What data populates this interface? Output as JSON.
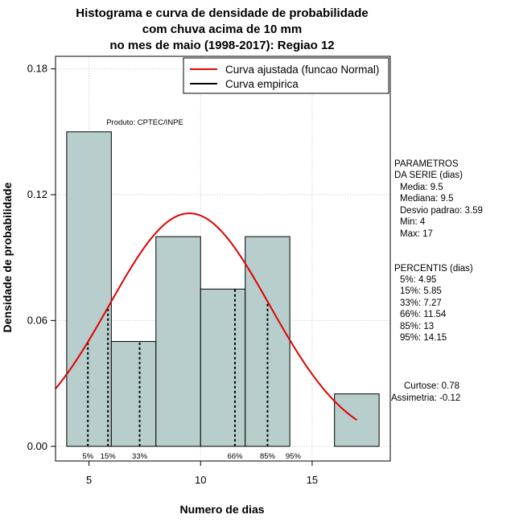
{
  "chart_data": {
    "type": "histogram",
    "title_lines": [
      "Histograma e curva de densidade de probabilidade",
      "com chuva acima de 10 mm",
      "no mes de maio (1998-2017): Regiao 12"
    ],
    "xlabel": "Numero de dias",
    "ylabel": "Densidade de probabilidade",
    "xlim": [
      3.5,
      18.5
    ],
    "ylim": [
      -0.007,
      0.186
    ],
    "x_ticks": [
      5,
      10,
      15
    ],
    "y_ticks": [
      0.0,
      0.06,
      0.12,
      0.18
    ],
    "y_tick_labels": [
      "0.00",
      "0.06",
      "0.12",
      "0.18"
    ],
    "grid": true,
    "bins": [
      {
        "x0": 4,
        "x1": 6,
        "density": 0.15
      },
      {
        "x0": 6,
        "x1": 8,
        "density": 0.05
      },
      {
        "x0": 8,
        "x1": 10,
        "density": 0.1
      },
      {
        "x0": 10,
        "x1": 12,
        "density": 0.075
      },
      {
        "x0": 12,
        "x1": 14,
        "density": 0.1
      },
      {
        "x0": 14,
        "x1": 16,
        "density": 0.0
      },
      {
        "x0": 16,
        "x1": 18,
        "density": 0.025
      }
    ],
    "normal_curve": {
      "mean": 9.5,
      "sd": 3.59,
      "x_range": [
        3.5,
        17
      ],
      "color": "#e00000"
    },
    "bar_fill": "#b7cecc",
    "percentiles": [
      {
        "label": "5%",
        "value": 4.95
      },
      {
        "label": "15%",
        "value": 5.85
      },
      {
        "label": "33%",
        "value": 7.27
      },
      {
        "label": "66%",
        "value": 11.54
      },
      {
        "label": "85%",
        "value": 13
      },
      {
        "label": "95%",
        "value": 14.15
      }
    ],
    "legend": [
      {
        "label": "Curva ajustada (funcao Normal)",
        "color": "#e00000"
      },
      {
        "label": "Curva empirica",
        "color": "#000000"
      }
    ],
    "legend_position": "top-right",
    "annotation": "Produto: CPTEC/INPE",
    "side_panel": {
      "parametros_title": [
        "PARAMETROS",
        "DA SERIE (dias)"
      ],
      "parametros": [
        "Media: 9.5",
        "Mediana: 9.5",
        "Desvio padrao: 3.59",
        "Min: 4",
        "Max: 17"
      ],
      "percentis_title": "PERCENTIS (dias)",
      "percentis": [
        "5%: 4.95",
        "15%: 5.85",
        "33%: 7.27",
        "66%: 11.54",
        "85%: 13",
        "95%: 14.15"
      ],
      "shape": [
        "Curtose: 0.78",
        "Assimetria: -0.12"
      ]
    }
  }
}
